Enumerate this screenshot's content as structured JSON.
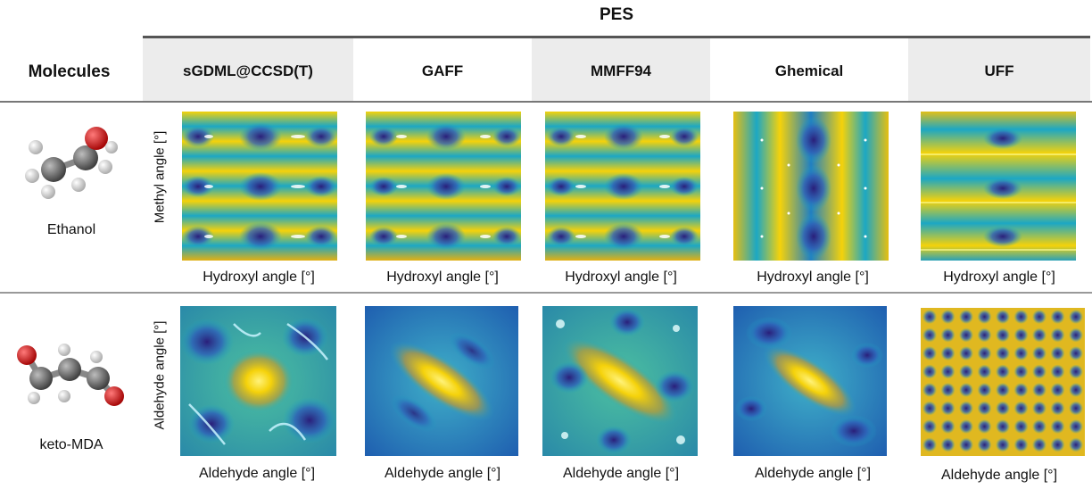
{
  "header": {
    "group_title": "PES",
    "molecules_label": "Molecules",
    "methods": [
      "sGDML@CCSD(T)",
      "GAFF",
      "MMFF94",
      "Ghemical",
      "UFF"
    ]
  },
  "rows": [
    {
      "molecule": "Ethanol",
      "ylabel": "Methyl angle [°]",
      "xlabel": "Hydroxyl angle [°]"
    },
    {
      "molecule": "keto-MDA",
      "ylabel": "Aldehyde angle [°]",
      "xlabel": "Aldehyde angle [°]"
    }
  ],
  "colors": {
    "low": "#2a1f7a",
    "mid": "#1ca7c4",
    "high": "#f5d20a",
    "carbon": "#5a5a5a",
    "oxygen": "#d20f0f",
    "hydrogen": "#e6e6e6"
  }
}
